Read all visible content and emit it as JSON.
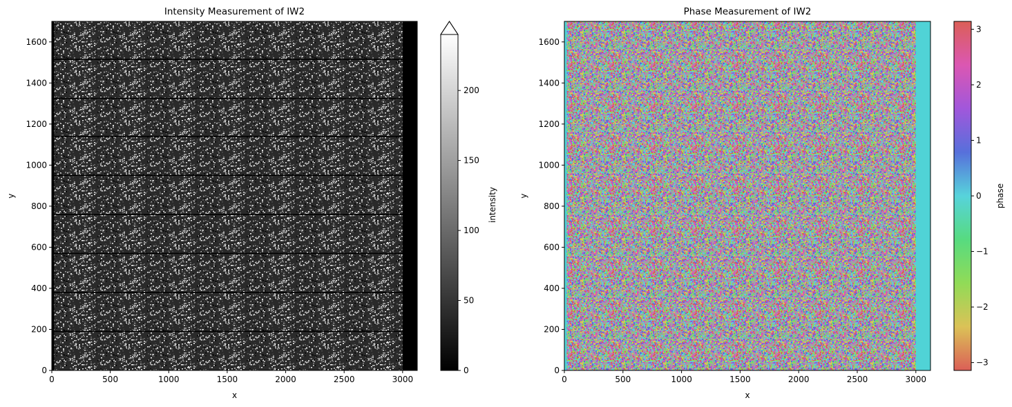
{
  "chart_data": [
    {
      "type": "heatmap",
      "title": "Intensity Measurement of IW2",
      "xlabel": "x",
      "ylabel": "y",
      "xlim": [
        0,
        3125
      ],
      "ylim": [
        0,
        1700
      ],
      "x_ticks": [
        0,
        500,
        1000,
        1500,
        2000,
        2500,
        3000
      ],
      "y_ticks": [
        0,
        200,
        400,
        600,
        800,
        1000,
        1200,
        1400,
        1600
      ],
      "data_extent": {
        "x": [
          20,
          3000
        ],
        "y": [
          0,
          1700
        ]
      },
      "burst_boundaries_y": [
        190,
        380,
        570,
        760,
        950,
        1140,
        1325,
        1515
      ],
      "colorbar": {
        "label": "intensity",
        "colormap": "gray",
        "range": [
          0,
          240
        ],
        "ticks": [
          0,
          50,
          100,
          150,
          200
        ],
        "extend": "max"
      },
      "colors": {
        "low": "#000000",
        "high": "#ffffff",
        "frame": "#000000"
      }
    },
    {
      "type": "heatmap",
      "title": "Phase Measurement of IW2",
      "xlabel": "x",
      "ylabel": "y",
      "xlim": [
        0,
        3125
      ],
      "ylim": [
        0,
        1700
      ],
      "x_ticks": [
        0,
        500,
        1000,
        1500,
        2000,
        2500,
        3000
      ],
      "y_ticks": [
        0,
        200,
        400,
        600,
        800,
        1000,
        1200,
        1400,
        1600
      ],
      "data_extent": {
        "x": [
          20,
          3000
        ],
        "y": [
          0,
          1700
        ]
      },
      "colorbar": {
        "label": "phase",
        "colormap": "hls",
        "range": [
          -3.1416,
          3.1416
        ],
        "ticks": [
          -3,
          -2,
          -1,
          0,
          1,
          2,
          3
        ],
        "tick_labels": [
          "−3",
          "−2",
          "−1",
          "0",
          "1",
          "2",
          "3"
        ]
      },
      "colors": {
        "background": "#50d3d6",
        "palette": [
          "#db5f57",
          "#dbc257",
          "#91db57",
          "#57db80",
          "#57d3db",
          "#5770db",
          "#a157db",
          "#db57b2",
          "#db5f57"
        ]
      }
    }
  ]
}
